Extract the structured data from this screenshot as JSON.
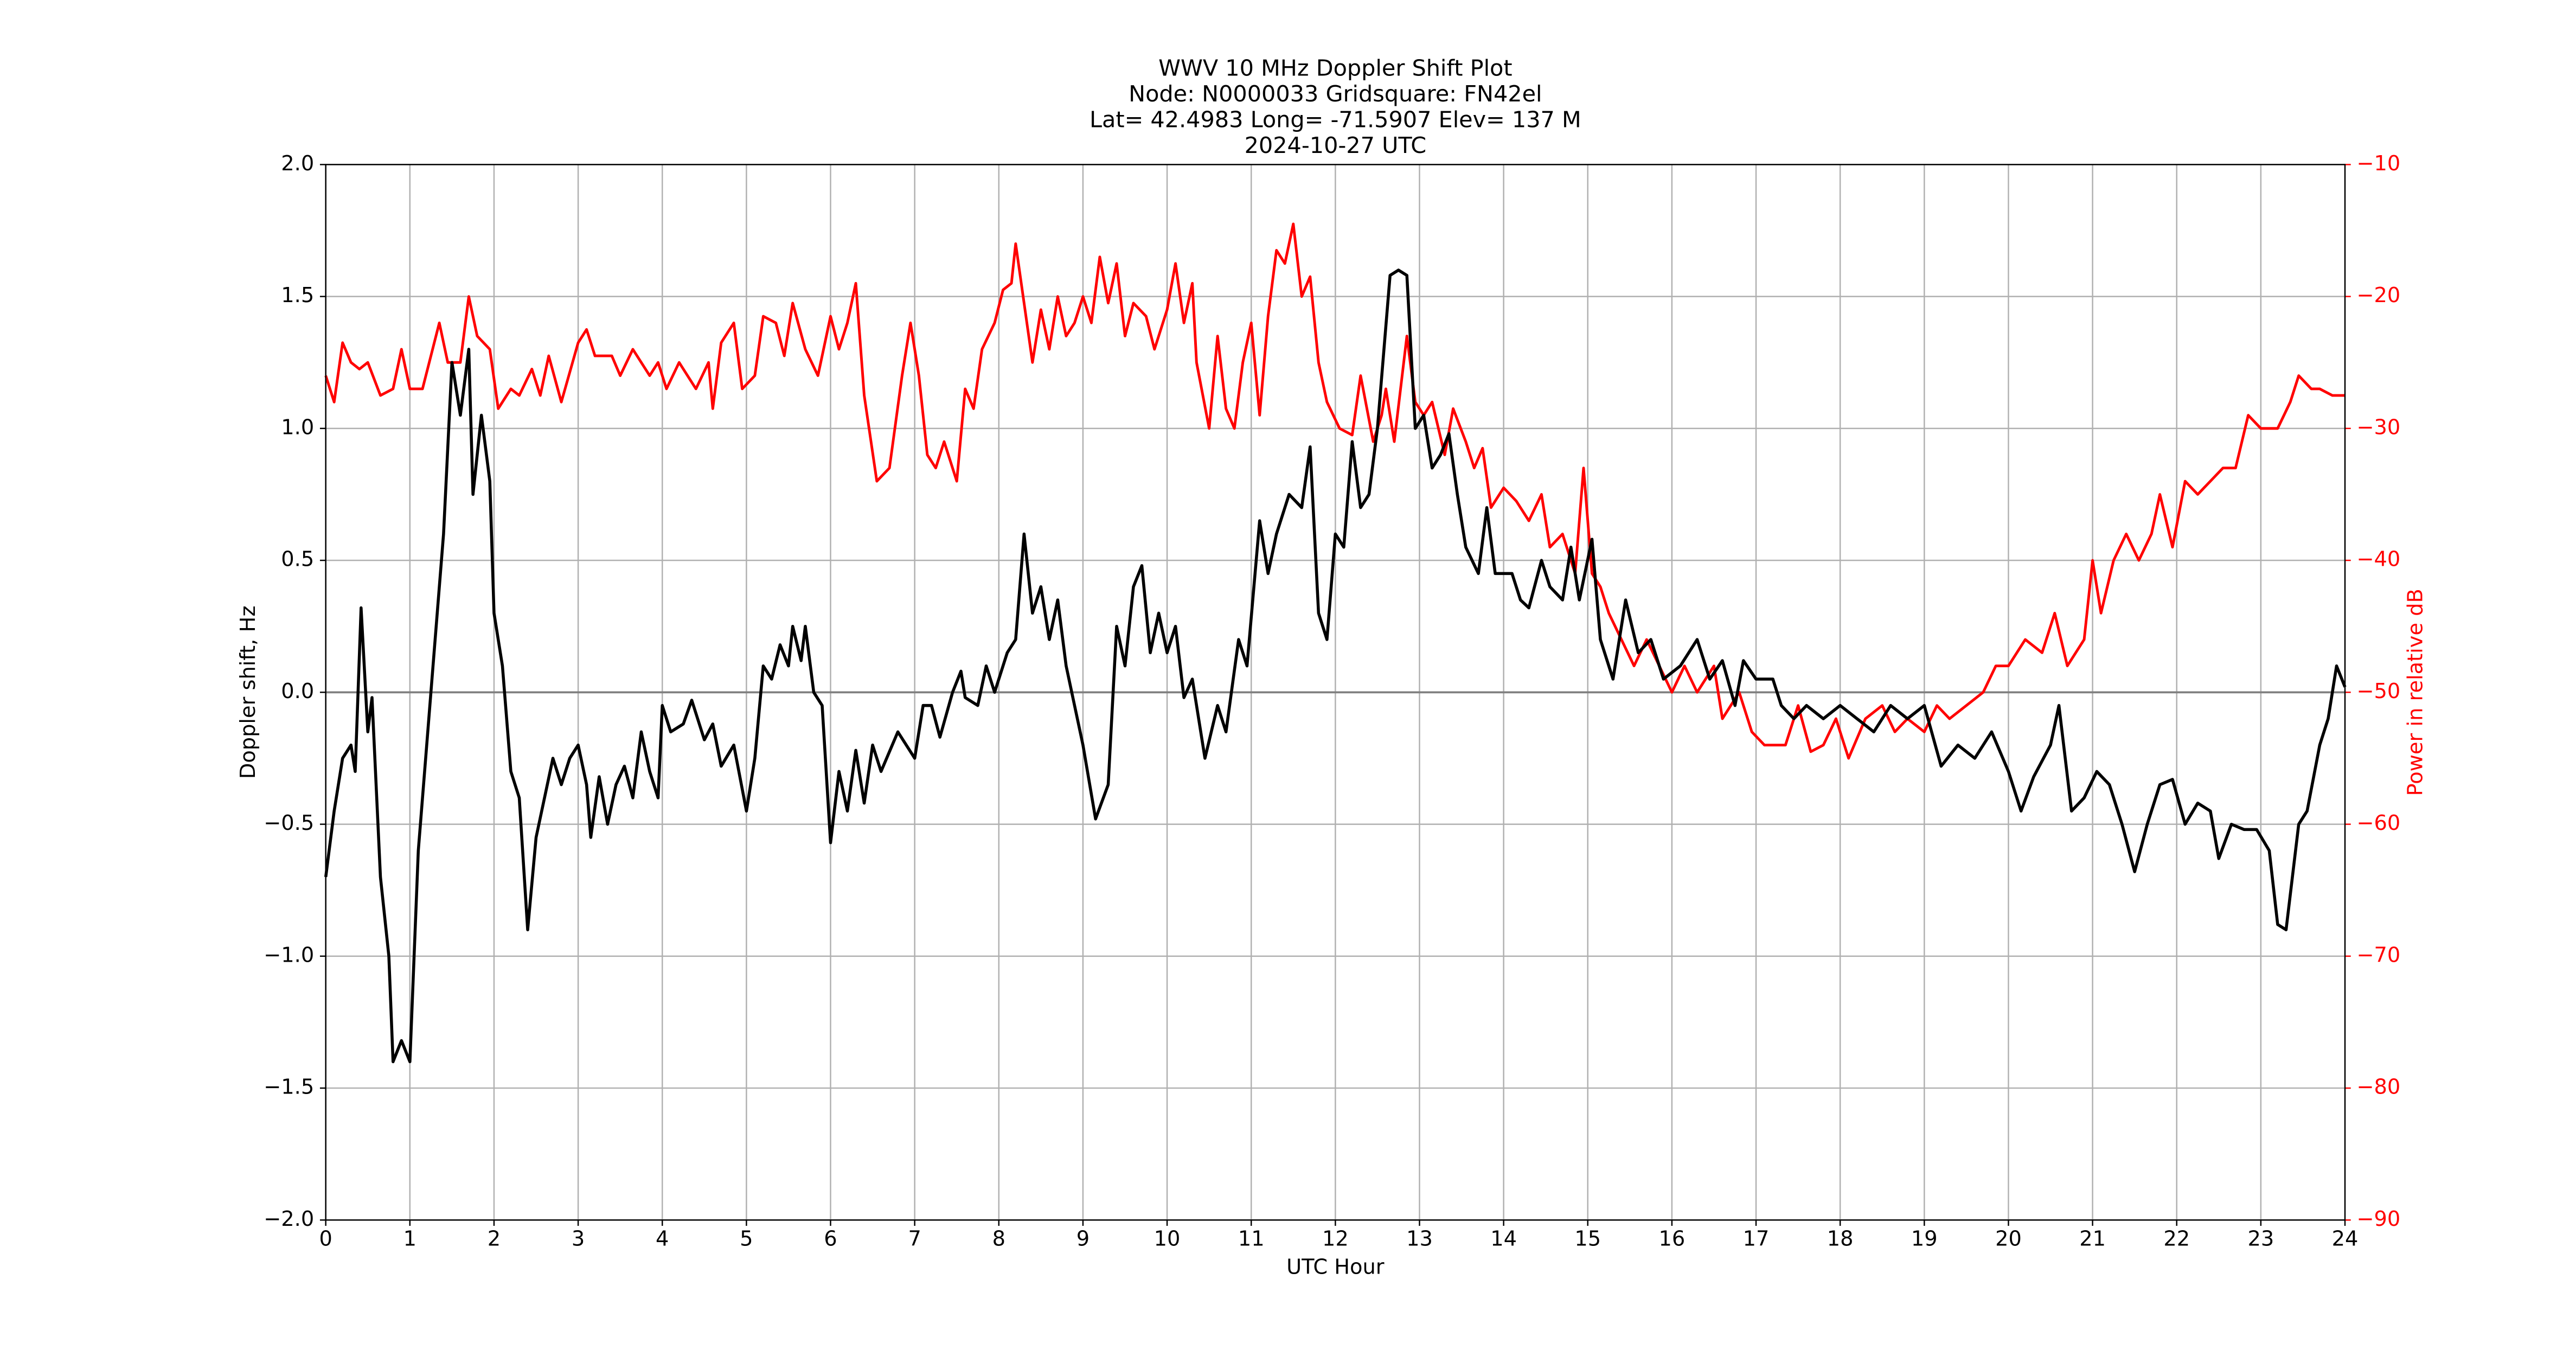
{
  "chart_data": {
    "type": "line",
    "title": [
      "WWV 10 MHz Doppler Shift Plot",
      "Node:  N0000033     Gridsquare:  FN42el",
      "Lat= 42.4983    Long= -71.5907    Elev= 137 M",
      "2024-10-27  UTC"
    ],
    "xlabel": "UTC Hour",
    "ylabel": "Doppler shift, Hz",
    "y2label": "Power in relative dB",
    "xlim": [
      0,
      24
    ],
    "xticks": [
      0,
      1,
      2,
      3,
      4,
      5,
      6,
      7,
      8,
      9,
      10,
      11,
      12,
      13,
      14,
      15,
      16,
      17,
      18,
      19,
      20,
      21,
      22,
      23,
      24
    ],
    "ylim": [
      -2,
      2
    ],
    "yticks": [
      {
        "value": -2,
        "label": "−2.0"
      },
      {
        "value": -1.5,
        "label": "−1.5"
      },
      {
        "value": -1,
        "label": "−1.0"
      },
      {
        "value": -0.5,
        "label": "−0.5"
      },
      {
        "value": 0,
        "label": "0.0"
      },
      {
        "value": 0.5,
        "label": "0.5"
      },
      {
        "value": 1,
        "label": "1.0"
      },
      {
        "value": 1.5,
        "label": "1.5"
      },
      {
        "value": 2,
        "label": "2.0"
      }
    ],
    "y2lim": [
      -90,
      -10
    ],
    "y2ticks": [
      {
        "value": -90,
        "label": "−90"
      },
      {
        "value": -80,
        "label": "−80"
      },
      {
        "value": -70,
        "label": "−70"
      },
      {
        "value": -60,
        "label": "−60"
      },
      {
        "value": -50,
        "label": "−50"
      },
      {
        "value": -40,
        "label": "−40"
      },
      {
        "value": -30,
        "label": "−30"
      },
      {
        "value": -20,
        "label": "−20"
      },
      {
        "value": -10,
        "label": "−10"
      }
    ],
    "y2color": "#ff0000",
    "grid": true,
    "zero_line": true,
    "series": [
      {
        "color": "#000000",
        "axis": "y",
        "x": [
          0,
          0.1,
          0.2,
          0.3,
          0.35,
          0.42,
          0.5,
          0.55,
          0.65,
          0.75,
          0.8,
          0.9,
          1.0,
          1.1,
          1.25,
          1.4,
          1.5,
          1.6,
          1.7,
          1.75,
          1.85,
          1.95,
          2.0,
          2.1,
          2.2,
          2.3,
          2.4,
          2.5,
          2.6,
          2.7,
          2.8,
          2.9,
          3.0,
          3.1,
          3.15,
          3.25,
          3.35,
          3.45,
          3.55,
          3.65,
          3.75,
          3.85,
          3.95,
          4.0,
          4.1,
          4.25,
          4.35,
          4.5,
          4.6,
          4.7,
          4.85,
          5.0,
          5.1,
          5.2,
          5.3,
          5.4,
          5.5,
          5.55,
          5.65,
          5.7,
          5.8,
          5.9,
          6.0,
          6.1,
          6.2,
          6.3,
          6.4,
          6.5,
          6.6,
          6.8,
          7.0,
          7.1,
          7.2,
          7.3,
          7.45,
          7.55,
          7.6,
          7.75,
          7.85,
          7.95,
          8.1,
          8.2,
          8.3,
          8.4,
          8.5,
          8.6,
          8.7,
          8.8,
          9.0,
          9.15,
          9.3,
          9.4,
          9.5,
          9.6,
          9.7,
          9.8,
          9.9,
          10.0,
          10.1,
          10.2,
          10.3,
          10.45,
          10.6,
          10.7,
          10.85,
          10.95,
          11.1,
          11.2,
          11.3,
          11.45,
          11.6,
          11.7,
          11.8,
          11.9,
          12.0,
          12.1,
          12.2,
          12.3,
          12.4,
          12.5,
          12.65,
          12.75,
          12.85,
          12.95,
          13.05,
          13.15,
          13.25,
          13.35,
          13.45,
          13.55,
          13.7,
          13.8,
          13.9,
          14.1,
          14.2,
          14.3,
          14.45,
          14.55,
          14.7,
          14.8,
          14.9,
          15.05,
          15.15,
          15.3,
          15.45,
          15.6,
          15.75,
          15.9,
          16.1,
          16.3,
          16.45,
          16.6,
          16.75,
          16.85,
          17.0,
          17.2,
          17.3,
          17.45,
          17.6,
          17.8,
          18.0,
          18.2,
          18.4,
          18.6,
          18.8,
          19.0,
          19.2,
          19.4,
          19.6,
          19.8,
          20.0,
          20.15,
          20.3,
          20.5,
          20.6,
          20.75,
          20.9,
          21.05,
          21.2,
          21.35,
          21.5,
          21.65,
          21.8,
          21.95,
          22.1,
          22.25,
          22.4,
          22.5,
          22.65,
          22.8,
          22.95,
          23.1,
          23.2,
          23.3,
          23.45,
          23.55,
          23.7,
          23.8,
          23.9,
          24.0
        ],
        "values": [
          -0.7,
          -0.45,
          -0.25,
          -0.2,
          -0.3,
          0.32,
          -0.15,
          -0.02,
          -0.7,
          -1.0,
          -1.4,
          -1.32,
          -1.4,
          -0.6,
          0.0,
          0.6,
          1.25,
          1.05,
          1.3,
          0.75,
          1.05,
          0.8,
          0.3,
          0.1,
          -0.3,
          -0.4,
          -0.9,
          -0.55,
          -0.4,
          -0.25,
          -0.35,
          -0.25,
          -0.2,
          -0.35,
          -0.55,
          -0.32,
          -0.5,
          -0.35,
          -0.28,
          -0.4,
          -0.15,
          -0.3,
          -0.4,
          -0.05,
          -0.15,
          -0.12,
          -0.03,
          -0.18,
          -0.12,
          -0.28,
          -0.2,
          -0.45,
          -0.25,
          0.1,
          0.05,
          0.18,
          0.1,
          0.25,
          0.12,
          0.25,
          0.0,
          -0.05,
          -0.57,
          -0.3,
          -0.45,
          -0.22,
          -0.42,
          -0.2,
          -0.3,
          -0.15,
          -0.25,
          -0.05,
          -0.05,
          -0.17,
          0.0,
          0.08,
          -0.02,
          -0.05,
          0.1,
          0.0,
          0.15,
          0.2,
          0.6,
          0.3,
          0.4,
          0.2,
          0.35,
          0.1,
          -0.2,
          -0.48,
          -0.35,
          0.25,
          0.1,
          0.4,
          0.48,
          0.15,
          0.3,
          0.15,
          0.25,
          -0.02,
          0.05,
          -0.25,
          -0.05,
          -0.15,
          0.2,
          0.1,
          0.65,
          0.45,
          0.6,
          0.75,
          0.7,
          0.93,
          0.3,
          0.2,
          0.6,
          0.55,
          0.95,
          0.7,
          0.75,
          1.0,
          1.58,
          1.6,
          1.58,
          1.0,
          1.05,
          0.85,
          0.9,
          0.98,
          0.75,
          0.55,
          0.45,
          0.7,
          0.45,
          0.45,
          0.35,
          0.32,
          0.5,
          0.4,
          0.35,
          0.55,
          0.35,
          0.58,
          0.2,
          0.05,
          0.35,
          0.15,
          0.2,
          0.05,
          0.1,
          0.2,
          0.05,
          0.12,
          -0.05,
          0.12,
          0.05,
          0.05,
          -0.05,
          -0.1,
          -0.05,
          -0.1,
          -0.05,
          -0.1,
          -0.15,
          -0.05,
          -0.1,
          -0.05,
          -0.28,
          -0.2,
          -0.25,
          -0.15,
          -0.3,
          -0.45,
          -0.32,
          -0.2,
          -0.05,
          -0.45,
          -0.4,
          -0.3,
          -0.35,
          -0.5,
          -0.68,
          -0.5,
          -0.35,
          -0.33,
          -0.5,
          -0.42,
          -0.45,
          -0.63,
          -0.5,
          -0.52,
          -0.52,
          -0.6,
          -0.88,
          -0.9,
          -0.5,
          -0.45,
          -0.2,
          -0.1,
          0.1,
          0.02
        ]
      },
      {
        "color": "#ff0000",
        "axis": "y2",
        "x": [
          0,
          0.1,
          0.2,
          0.3,
          0.4,
          0.5,
          0.65,
          0.8,
          0.9,
          1.0,
          1.15,
          1.35,
          1.45,
          1.6,
          1.7,
          1.8,
          1.95,
          2.05,
          2.2,
          2.3,
          2.45,
          2.55,
          2.65,
          2.8,
          3.0,
          3.1,
          3.2,
          3.4,
          3.5,
          3.65,
          3.85,
          3.95,
          4.05,
          4.2,
          4.4,
          4.55,
          4.6,
          4.7,
          4.85,
          4.95,
          5.1,
          5.2,
          5.35,
          5.45,
          5.55,
          5.7,
          5.85,
          6.0,
          6.1,
          6.2,
          6.3,
          6.4,
          6.55,
          6.7,
          6.85,
          6.95,
          7.05,
          7.15,
          7.25,
          7.35,
          7.5,
          7.6,
          7.7,
          7.8,
          7.95,
          8.05,
          8.15,
          8.2,
          8.3,
          8.4,
          8.5,
          8.6,
          8.7,
          8.8,
          8.9,
          9.0,
          9.1,
          9.2,
          9.3,
          9.4,
          9.5,
          9.6,
          9.75,
          9.85,
          10.0,
          10.1,
          10.2,
          10.3,
          10.35,
          10.5,
          10.6,
          10.7,
          10.8,
          10.9,
          11.0,
          11.1,
          11.2,
          11.3,
          11.4,
          11.5,
          11.6,
          11.7,
          11.8,
          11.9,
          12.05,
          12.2,
          12.3,
          12.45,
          12.55,
          12.6,
          12.7,
          12.85,
          12.95,
          13.05,
          13.15,
          13.3,
          13.4,
          13.55,
          13.65,
          13.75,
          13.85,
          14.0,
          14.15,
          14.3,
          14.45,
          14.55,
          14.7,
          14.85,
          14.95,
          15.05,
          15.15,
          15.25,
          15.4,
          15.55,
          15.7,
          15.85,
          16.0,
          16.15,
          16.3,
          16.5,
          16.6,
          16.8,
          16.95,
          17.1,
          17.2,
          17.35,
          17.5,
          17.65,
          17.8,
          17.95,
          18.1,
          18.3,
          18.5,
          18.65,
          18.8,
          19.0,
          19.15,
          19.3,
          19.5,
          19.7,
          19.85,
          20.0,
          20.2,
          20.4,
          20.55,
          20.7,
          20.9,
          21.0,
          21.1,
          21.25,
          21.4,
          21.55,
          21.7,
          21.8,
          21.95,
          22.1,
          22.25,
          22.4,
          22.55,
          22.7,
          22.85,
          23.0,
          23.2,
          23.35,
          23.45,
          23.6,
          23.7,
          23.85,
          24.0
        ],
        "values": [
          -26,
          -28,
          -23.5,
          -25,
          -25.5,
          -25,
          -27.5,
          -27,
          -24,
          -27,
          -27,
          -22,
          -25,
          -25,
          -20,
          -23,
          -24,
          -28.5,
          -27,
          -27.5,
          -25.5,
          -27.5,
          -24.5,
          -28,
          -23.5,
          -22.5,
          -24.5,
          -24.5,
          -26,
          -24,
          -26,
          -25,
          -27,
          -25,
          -27,
          -25,
          -28.5,
          -23.5,
          -22,
          -27,
          -26,
          -21.5,
          -22,
          -24.5,
          -20.5,
          -24,
          -26,
          -21.5,
          -24,
          -22,
          -19,
          -27.5,
          -34,
          -33,
          -26,
          -22,
          -26,
          -32,
          -33,
          -31,
          -34,
          -27,
          -28.5,
          -24,
          -22,
          -19.5,
          -19,
          -16,
          -20.5,
          -25,
          -21,
          -24,
          -20,
          -23,
          -22,
          -20,
          -22,
          -17,
          -20.5,
          -17.5,
          -23,
          -20.5,
          -21.5,
          -24,
          -21,
          -17.5,
          -22,
          -19,
          -25,
          -30,
          -23,
          -28.5,
          -30,
          -25,
          -22,
          -29,
          -21.5,
          -16.5,
          -17.5,
          -14.5,
          -20,
          -18.5,
          -25,
          -28,
          -30,
          -30.5,
          -26,
          -31,
          -29,
          -27,
          -31,
          -23,
          -28,
          -29,
          -28,
          -32,
          -28.5,
          -31,
          -33,
          -31.5,
          -36,
          -34.5,
          -35.5,
          -37,
          -35,
          -39,
          -38,
          -41,
          -33,
          -41,
          -42,
          -44,
          -46,
          -48,
          -46,
          -48,
          -50,
          -48,
          -50,
          -48,
          -52,
          -50,
          -53,
          -54,
          -54,
          -54,
          -51,
          -54.5,
          -54,
          -52,
          -55,
          -52,
          -51,
          -53,
          -52,
          -53,
          -51,
          -52,
          -51,
          -50,
          -48,
          -48,
          -46,
          -47,
          -44,
          -48,
          -46,
          -40,
          -44,
          -40,
          -38,
          -40,
          -38,
          -35,
          -39,
          -34,
          -35,
          -34,
          -33,
          -33,
          -29,
          -30,
          -30,
          -28,
          -26,
          -27,
          -27,
          -27.5,
          -27.5
        ]
      }
    ]
  }
}
